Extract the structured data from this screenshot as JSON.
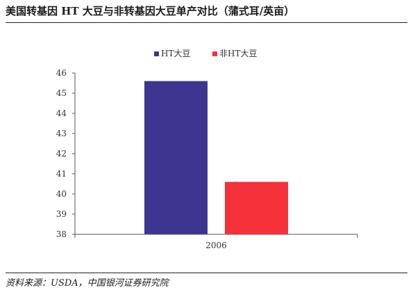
{
  "header": {
    "title": "美国转基因 HT 大豆与非转基因大豆单产对比（蒲式耳/英亩）"
  },
  "footer": {
    "source": "资料来源：USDA，中国银河证券研究院"
  },
  "chart_data": {
    "type": "bar",
    "categories": [
      "2006"
    ],
    "series": [
      {
        "name": "HT大豆",
        "values": [
          45.6
        ],
        "color": "#3d3590"
      },
      {
        "name": "非HT大豆",
        "values": [
          40.6
        ],
        "color": "#f5313a"
      }
    ],
    "ylim": [
      38,
      46
    ],
    "yticks": [
      "38",
      "39",
      "40",
      "41",
      "42",
      "43",
      "44",
      "45",
      "46"
    ],
    "legend_position": "top",
    "grid": false
  }
}
